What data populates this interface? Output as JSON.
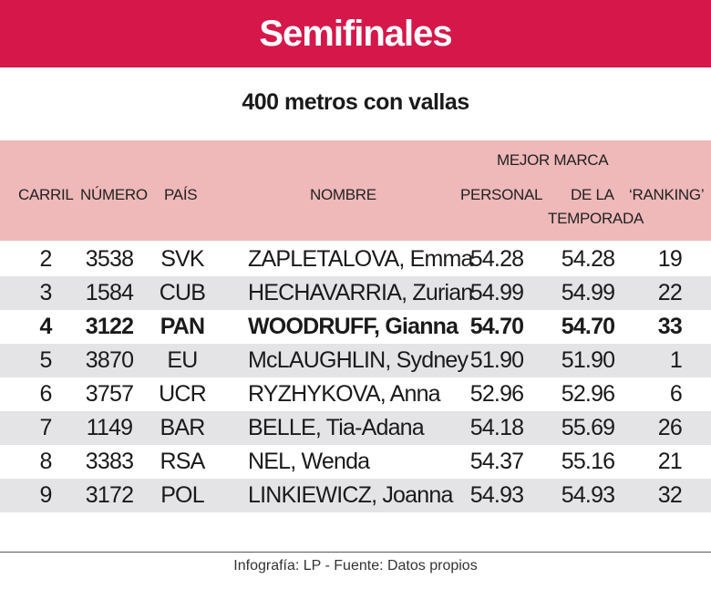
{
  "title": "Semifinales",
  "subtitle": "400 metros con vallas",
  "columns": {
    "carril": "CARRIL",
    "numero": "NÚMERO",
    "pais": "PAÍS",
    "nombre": "NOMBRE",
    "mejor_marca": "MEJOR MARCA",
    "personal": "PERSONAL",
    "temporada_line1": "DE LA",
    "temporada_line2": "TEMPORADA",
    "ranking": "‘RANKING’"
  },
  "rows": [
    {
      "carril": "2",
      "numero": "3538",
      "pais": "SVK",
      "nombre": "ZAPLETALOVA, Emma",
      "personal": "54.28",
      "temporada": "54.28",
      "ranking": "19"
    },
    {
      "carril": "3",
      "numero": "1584",
      "pais": "CUB",
      "nombre": "HECHAVARRIA, Zurian",
      "personal": "54.99",
      "temporada": "54.99",
      "ranking": "22"
    },
    {
      "carril": "4",
      "numero": "3122",
      "pais": "PAN",
      "nombre": "WOODRUFF, Gianna",
      "personal": "54.70",
      "temporada": "54.70",
      "ranking": "33"
    },
    {
      "carril": "5",
      "numero": "3870",
      "pais": "EU",
      "nombre": "McLAUGHLIN, Sydney",
      "personal": "51.90",
      "temporada": "51.90",
      "ranking": "1"
    },
    {
      "carril": "6",
      "numero": "3757",
      "pais": "UCR",
      "nombre": "RYZHYKOVA, Anna",
      "personal": "52.96",
      "temporada": "52.96",
      "ranking": "6"
    },
    {
      "carril": "7",
      "numero": "1149",
      "pais": "BAR",
      "nombre": "BELLE, Tia-Adana",
      "personal": "54.18",
      "temporada": "55.69",
      "ranking": "26"
    },
    {
      "carril": "8",
      "numero": "3383",
      "pais": "RSA",
      "nombre": "NEL, Wenda",
      "personal": "54.37",
      "temporada": "55.16",
      "ranking": "21"
    },
    {
      "carril": "9",
      "numero": "3172",
      "pais": "POL",
      "nombre": "LINKIEWICZ, Joanna",
      "personal": "54.93",
      "temporada": "54.93",
      "ranking": "32"
    }
  ],
  "highlighted_row_carril": "4",
  "source": "Infografía: LP - Fuente: Datos propios",
  "colors": {
    "banner": "#d6174a",
    "header_bg": "#efb8b9",
    "alt_row": "#e4e4e7"
  }
}
